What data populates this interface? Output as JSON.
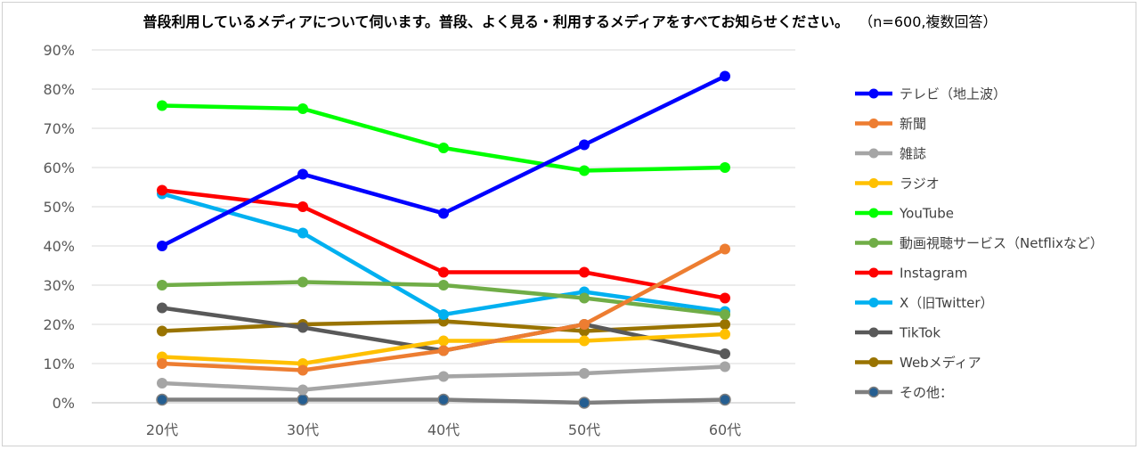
{
  "chart_data": {
    "type": "line",
    "title": "普段利用しているメディアについて伺います。普段、よく見る・利用するメディアをすべてお知らせください。",
    "subtitle": "（n=600,複数回答）",
    "categories": [
      "20代",
      "30代",
      "40代",
      "50代",
      "60代"
    ],
    "ylim": [
      0,
      90
    ],
    "yticks": [
      "0%",
      "10%",
      "20%",
      "30%",
      "40%",
      "50%",
      "60%",
      "70%",
      "80%",
      "90%"
    ],
    "grid": true,
    "legend_position": "right",
    "series": [
      {
        "name": "テレビ（地上波）",
        "color": "#0000ff",
        "values": [
          40,
          58.3,
          48.3,
          65.8,
          83.3
        ]
      },
      {
        "name": "新聞",
        "color": "#ed7d31",
        "values": [
          10,
          8.3,
          13.3,
          20,
          39.2
        ]
      },
      {
        "name": "雑誌",
        "color": "#a5a5a5",
        "values": [
          5,
          3.3,
          6.7,
          7.5,
          9.2
        ]
      },
      {
        "name": "ラジオ",
        "color": "#ffc000",
        "values": [
          11.7,
          10,
          15.8,
          15.8,
          17.5
        ]
      },
      {
        "name": "YouTube",
        "color": "#00ff00",
        "values": [
          75.8,
          75,
          65,
          59.2,
          60
        ]
      },
      {
        "name": "動画視聴サービス（Netflixなど）",
        "color": "#70ad47",
        "values": [
          30,
          30.8,
          30,
          26.7,
          22.5
        ]
      },
      {
        "name": "Instagram",
        "color": "#ff0000",
        "values": [
          54.2,
          50,
          33.3,
          33.3,
          26.7
        ]
      },
      {
        "name": "X（旧Twitter）",
        "color": "#00b0f0",
        "values": [
          53.3,
          43.3,
          22.5,
          28.3,
          23.3
        ]
      },
      {
        "name": "TikTok",
        "color": "#595959",
        "values": [
          24.2,
          19.2,
          13.3,
          20,
          12.5
        ]
      },
      {
        "name": "Webメディア",
        "color": "#997300",
        "values": [
          18.3,
          20,
          20.8,
          18.3,
          20
        ]
      },
      {
        "name": "その他：",
        "color": "#7f7f7f",
        "marker_color": "#255e91",
        "values": [
          0.8,
          0.8,
          0.8,
          0,
          0.8
        ]
      }
    ]
  }
}
